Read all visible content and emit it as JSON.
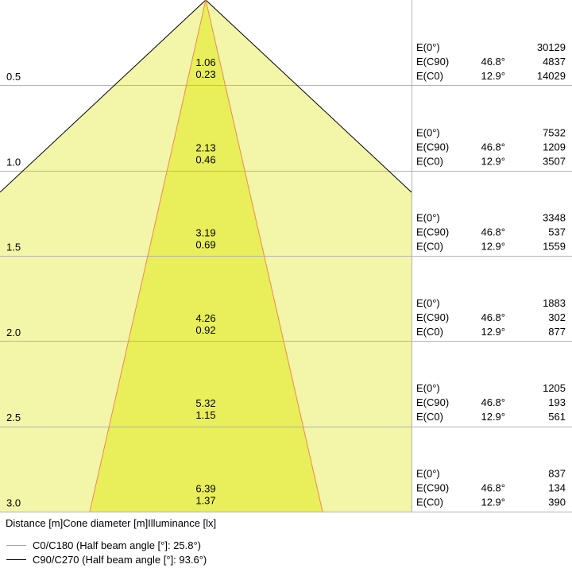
{
  "colors": {
    "outer_fill": "#f3f5a8",
    "inner_fill": "#e9ef5a",
    "c0_line": "#f08a4b",
    "c90_line": "#000000",
    "grid": "#b3b3b3",
    "text": "#000000"
  },
  "rows": [
    {
      "distance": "0.5",
      "c0_diameter": "0.23",
      "c90_diameter": "1.06",
      "e0": "30129",
      "ec90_angle": "46.8°",
      "ec90": "4837",
      "ec0_angle": "12.9°",
      "ec0": "14029"
    },
    {
      "distance": "1.0",
      "c0_diameter": "0.46",
      "c90_diameter": "2.13",
      "e0": "7532",
      "ec90_angle": "46.8°",
      "ec90": "1209",
      "ec0_angle": "12.9°",
      "ec0": "3507"
    },
    {
      "distance": "1.5",
      "c0_diameter": "0.69",
      "c90_diameter": "3.19",
      "e0": "3348",
      "ec90_angle": "46.8°",
      "ec90": "537",
      "ec0_angle": "12.9°",
      "ec0": "1559"
    },
    {
      "distance": "2.0",
      "c0_diameter": "0.92",
      "c90_diameter": "4.26",
      "e0": "1883",
      "ec90_angle": "46.8°",
      "ec90": "302",
      "ec0_angle": "12.9°",
      "ec0": "877"
    },
    {
      "distance": "2.5",
      "c0_diameter": "1.15",
      "c90_diameter": "5.32",
      "e0": "1205",
      "ec90_angle": "46.8°",
      "ec90": "193",
      "ec0_angle": "12.9°",
      "ec0": "561"
    },
    {
      "distance": "3.0",
      "c0_diameter": "1.37",
      "c90_diameter": "6.39",
      "e0": "837",
      "ec90_angle": "46.8°",
      "ec90": "134",
      "ec0_angle": "12.9°",
      "ec0": "390"
    }
  ],
  "labels": {
    "e0": "E(0°)",
    "ec90": "E(C90)",
    "ec0": "E(C0)"
  },
  "footer": {
    "header": "Distance [m]Cone diameter [m]Illuminance [lx]",
    "legend_c0": "C0/C180 (Half beam angle [°]: 25.8°)",
    "legend_c90": "C90/C270 (Half beam angle [°]: 93.6°)"
  }
}
